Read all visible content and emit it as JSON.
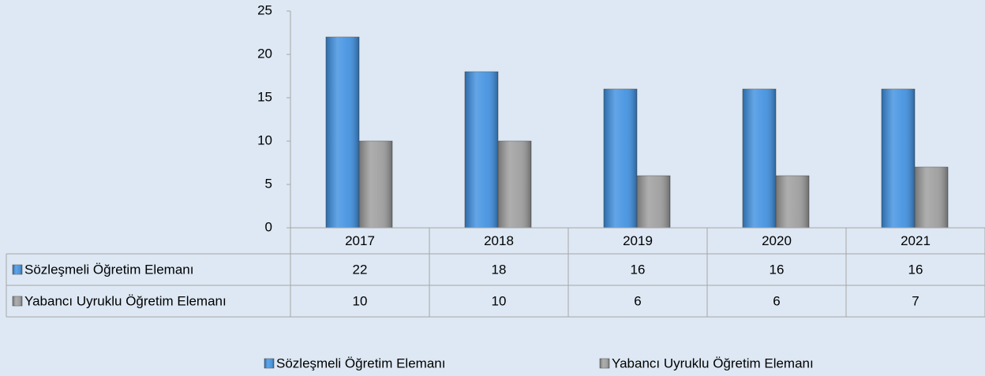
{
  "chart_data": {
    "type": "bar",
    "categories": [
      "2017",
      "2018",
      "2019",
      "2020",
      "2021"
    ],
    "series": [
      {
        "name": "Sözleşmeli Öğretim Elemanı",
        "color": "#3b8ee0",
        "values": [
          22,
          18,
          16,
          16,
          16
        ]
      },
      {
        "name": "Yabancı Uyruklu Öğretim Elemanı",
        "color": "#9a9a9a",
        "values": [
          10,
          10,
          6,
          6,
          7
        ]
      }
    ],
    "ylim": [
      0,
      25
    ],
    "yticks": [
      0,
      5,
      10,
      15,
      20,
      25
    ],
    "grid": false,
    "legend": "bottom"
  }
}
